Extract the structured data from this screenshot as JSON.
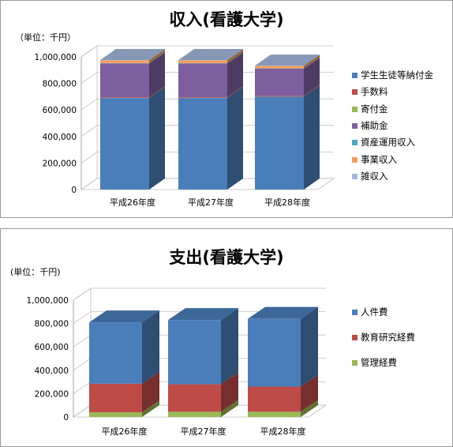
{
  "chart_data": [
    {
      "type": "bar",
      "stacked": true,
      "three_d": true,
      "title": "収入(看護大学)",
      "unit_label": "（単位：千円）",
      "categories": [
        "平成26年度",
        "平成27年度",
        "平成28年度"
      ],
      "ylim": [
        0,
        1000000
      ],
      "yticks": [
        "0",
        "200,000",
        "400,000",
        "600,000",
        "800,000",
        "1,000,000"
      ],
      "ytick_values": [
        0,
        200000,
        400000,
        600000,
        800000,
        1000000
      ],
      "grid": true,
      "legend_position": "right",
      "series": [
        {
          "name": "学生生徒等納付金",
          "values": [
            690000,
            690000,
            700000
          ],
          "color": "#4a7ebb"
        },
        {
          "name": "手数料",
          "values": [
            5000,
            5000,
            5000
          ],
          "color": "#be4b48"
        },
        {
          "name": "寄付金",
          "values": [
            1000,
            1000,
            1000
          ],
          "color": "#98b954"
        },
        {
          "name": "補助金",
          "values": [
            255000,
            255000,
            205000
          ],
          "color": "#7d5fa0"
        },
        {
          "name": "資産運用収入",
          "values": [
            2000,
            2000,
            2000
          ],
          "color": "#46aac5"
        },
        {
          "name": "事業収入",
          "values": [
            20000,
            20000,
            18000
          ],
          "color": "#f59d56"
        },
        {
          "name": "雑収入",
          "values": [
            3000,
            3000,
            3000
          ],
          "color": "#a5b9df"
        }
      ]
    },
    {
      "type": "bar",
      "stacked": true,
      "three_d": true,
      "title": "支出(看護大学)",
      "unit_label": "(単位：千円)",
      "categories": [
        "平成26年度",
        "平成27年度",
        "平成28年度"
      ],
      "ylim": [
        0,
        1000000
      ],
      "yticks": [
        "0",
        "200,000",
        "400,000",
        "600,000",
        "800,000",
        "1,000,000"
      ],
      "ytick_values": [
        0,
        200000,
        400000,
        600000,
        800000,
        1000000
      ],
      "grid": true,
      "legend_position": "right",
      "series": [
        {
          "name": "管理経費",
          "values": [
            40000,
            45000,
            45000
          ],
          "color": "#98b954"
        },
        {
          "name": "教育研究経費",
          "values": [
            245000,
            235000,
            215000
          ],
          "color": "#be4b48"
        },
        {
          "name": "人件費",
          "values": [
            525000,
            550000,
            580000
          ],
          "color": "#4a7ebb"
        }
      ]
    }
  ]
}
